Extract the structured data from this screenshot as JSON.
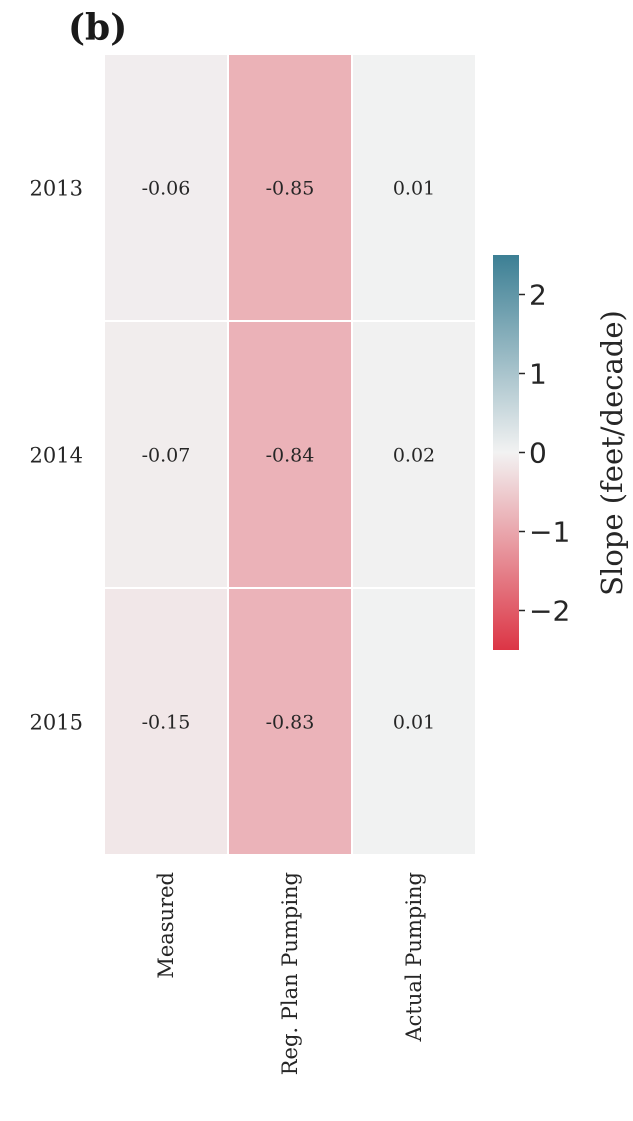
{
  "panel_label": "(b)",
  "chart_data": {
    "type": "heatmap",
    "rows": [
      "2013",
      "2014",
      "2015"
    ],
    "columns": [
      "Measured",
      "Reg. Plan Pumping",
      "Actual Pumping"
    ],
    "values": [
      [
        -0.06,
        -0.85,
        0.01
      ],
      [
        -0.07,
        -0.84,
        0.02
      ],
      [
        -0.15,
        -0.83,
        0.01
      ]
    ],
    "value_labels": [
      [
        "-0.06",
        "-0.85",
        "0.01"
      ],
      [
        "-0.07",
        "-0.84",
        "0.02"
      ],
      [
        "-0.15",
        "-0.83",
        "0.01"
      ]
    ],
    "colorbar": {
      "label": "Slope (feet/decade)",
      "vmin": -2.5,
      "vmax": 2.5,
      "ticks": [
        2,
        1,
        0,
        -1,
        -2
      ],
      "tick_labels": [
        "2",
        "1",
        "0",
        "−1",
        "−2"
      ],
      "low_color": "#dc3545",
      "mid_color": "#f2f2f2",
      "high_color": "#3c7f94"
    }
  }
}
